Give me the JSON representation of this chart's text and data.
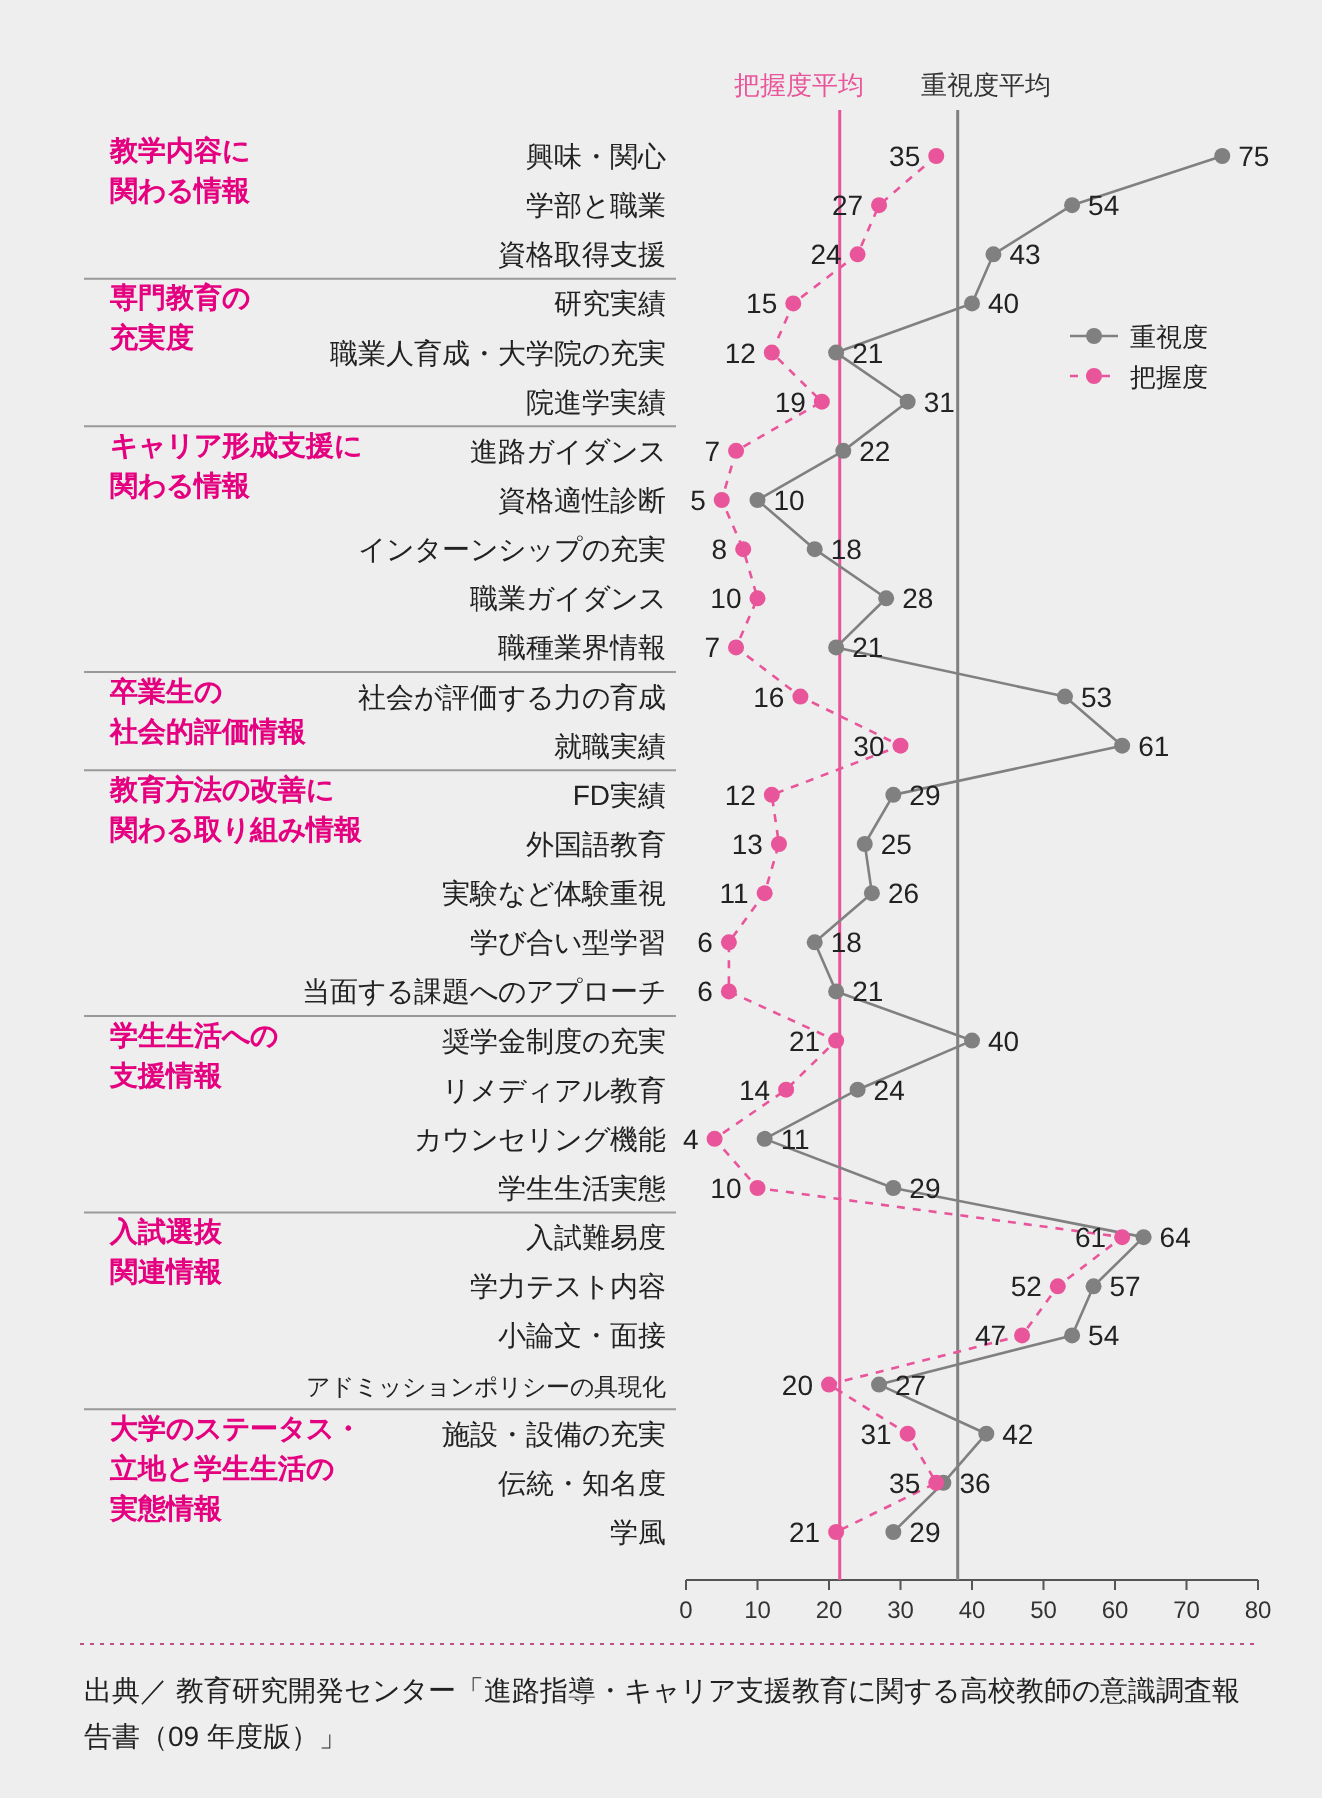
{
  "chart_data": {
    "type": "line",
    "orientation": "horizontal",
    "categories": [
      "興味・関心",
      "学部と職業",
      "資格取得支援",
      "研究実績",
      "職業人育成・大学院の充実",
      "院進学実績",
      "進路ガイダンス",
      "資格適性診断",
      "インターンシップの充実",
      "職業ガイダンス",
      "職種業界情報",
      "社会が評価する力の育成",
      "就職実績",
      "FD実績",
      "外国語教育",
      "実験など体験重視",
      "学び合い型学習",
      "当面する課題へのアプローチ",
      "奨学金制度の充実",
      "リメディアル教育",
      "カウンセリング機能",
      "学生生活実態",
      "入試難易度",
      "学力テスト内容",
      "小論文・面接",
      "アドミッションポリシーの具現化",
      "施設・設備の充実",
      "伝統・知名度",
      "学風"
    ],
    "series": [
      {
        "name": "重視度",
        "color": "#808080",
        "line_style": "solid",
        "values": [
          75,
          54,
          43,
          40,
          21,
          31,
          22,
          10,
          18,
          28,
          21,
          53,
          61,
          29,
          25,
          26,
          18,
          21,
          40,
          24,
          11,
          29,
          64,
          57,
          54,
          27,
          42,
          36,
          29
        ]
      },
      {
        "name": "把握度",
        "color": "#e8559a",
        "line_style": "dashed",
        "values": [
          35,
          27,
          24,
          15,
          12,
          19,
          7,
          5,
          8,
          10,
          7,
          16,
          30,
          12,
          13,
          11,
          6,
          6,
          21,
          14,
          4,
          10,
          61,
          52,
          47,
          20,
          31,
          35,
          21
        ]
      }
    ],
    "marker": "circle",
    "data_labels": true,
    "legend": "right",
    "xlim": [
      0,
      80
    ],
    "xticks": [
      0,
      10,
      20,
      30,
      40,
      50,
      60,
      70,
      80
    ],
    "ref_lines": [
      {
        "axis": "x",
        "value": 21.5,
        "label": "把握度平均",
        "color": "#e8559a"
      },
      {
        "axis": "x",
        "value": 38,
        "label": "重視度平均",
        "color": "#808080"
      }
    ],
    "annotations": [
      "教学内容に関わる情報",
      "専門教育の充実度",
      "キャリア形成支援に関わる情報",
      "卒業生の社会的評価情報",
      "教育方法の改善に関わる取り組み情報",
      "学生生活への支援情報",
      "入試選抜関連情報",
      "大学のステータス・立地と学生生活の実態情報",
      "出典／ 教育研究開発センター「進路指導・キャリア支援教育に関する高校教師の意識調査報告書（09 年度版）」"
    ]
  }
}
